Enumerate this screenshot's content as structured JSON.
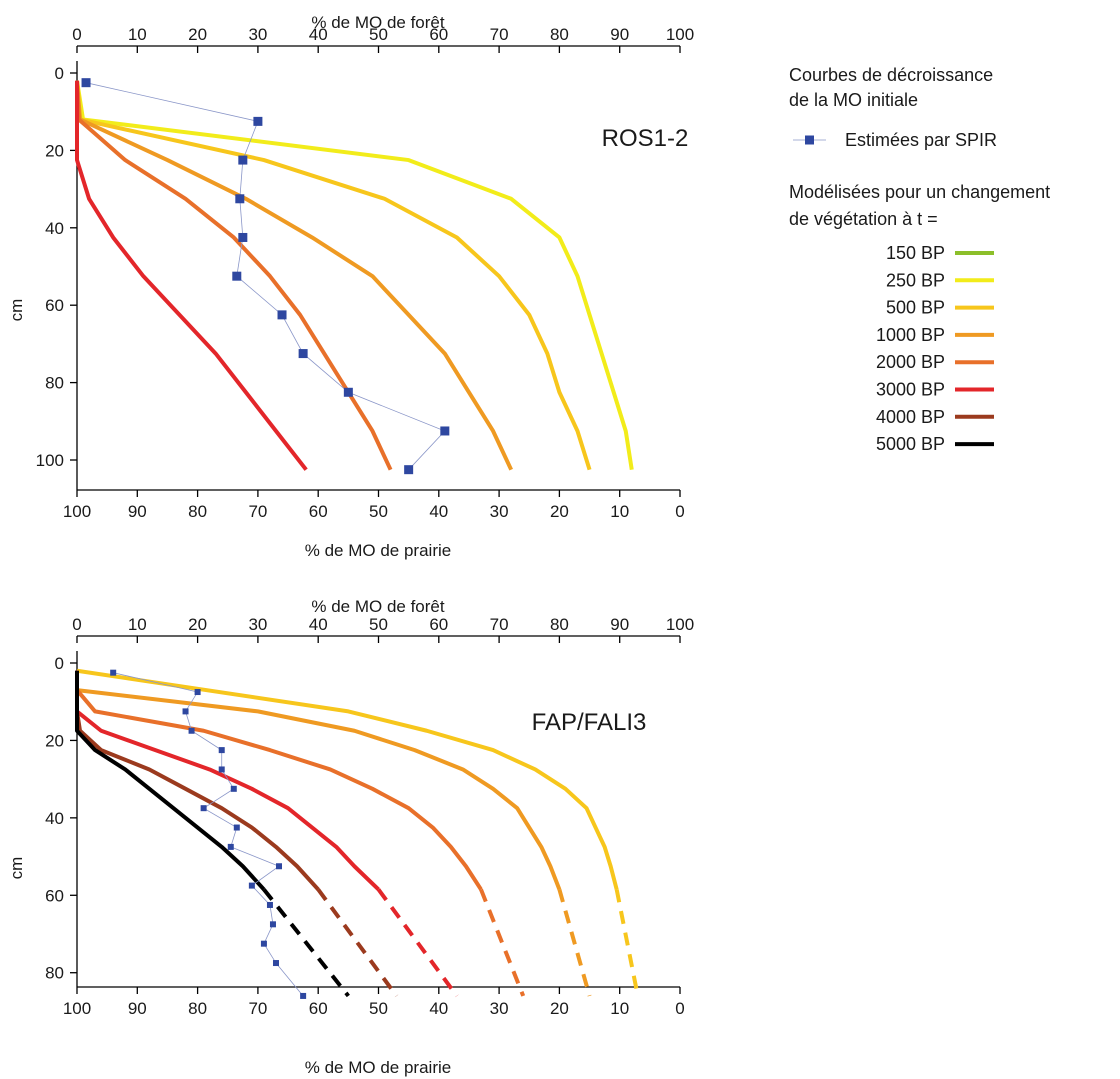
{
  "legend": {
    "title_line1": "Courbes de décroissance",
    "title_line2": "de la MO initiale",
    "estimated_label": "Estimées par SPIR",
    "model_title_line1": "Modélisées pour un changement",
    "model_title_line2": "de végétation à t =",
    "items": [
      {
        "label": "150 BP",
        "color": "#8cbf2a"
      },
      {
        "label": "250 BP",
        "color": "#f2ec1a"
      },
      {
        "label": "500 BP",
        "color": "#f7c61c"
      },
      {
        "label": "1000 BP",
        "color": "#ef9a22"
      },
      {
        "label": "2000 BP",
        "color": "#e8702a"
      },
      {
        "label": "3000 BP",
        "color": "#e3262a"
      },
      {
        "label": "4000 BP",
        "color": "#9b3a1e"
      },
      {
        "label": "5000 BP",
        "color": "#000000"
      }
    ],
    "spir_color": "#2e47a0"
  },
  "chart_data": [
    {
      "type": "line",
      "title": "ROS1-2",
      "x_top_label": "% de MO de forêt",
      "x_bottom_label": "% de MO de prairie",
      "ylabel": "cm",
      "x_top_ticks": [
        "0",
        "10",
        "20",
        "30",
        "40",
        "50",
        "60",
        "70",
        "80",
        "90",
        "100"
      ],
      "x_bottom_ticks": [
        "100",
        "90",
        "80",
        "70",
        "60",
        "50",
        "40",
        "30",
        "20",
        "10",
        "0"
      ],
      "y_ticks": [
        "0",
        "20",
        "40",
        "60",
        "80",
        "100"
      ],
      "xlim": [
        0,
        100
      ],
      "ylim": [
        0,
        105
      ],
      "spir": {
        "name": "Estimées par SPIR",
        "points": [
          [
            1.5,
            2.5
          ],
          [
            30,
            12.5
          ],
          [
            27.5,
            22.5
          ],
          [
            27,
            32.5
          ],
          [
            27.5,
            42.5
          ],
          [
            26.5,
            52.5
          ],
          [
            34,
            62.5
          ],
          [
            37.5,
            72.5
          ],
          [
            45,
            82.5
          ],
          [
            61,
            92.5
          ],
          [
            55,
            102.5
          ]
        ]
      },
      "series": [
        {
          "name": "250 BP",
          "color": "#f2ec1a",
          "points": [
            [
              0,
              2
            ],
            [
              1,
              12
            ],
            [
              55,
              22.5
            ],
            [
              72,
              32.5
            ],
            [
              80,
              42.5
            ],
            [
              83,
              52.5
            ],
            [
              85,
              62.5
            ],
            [
              87,
              72.5
            ],
            [
              89,
              82.5
            ],
            [
              91,
              92.5
            ],
            [
              92,
              102.5
            ]
          ]
        },
        {
          "name": "500 BP",
          "color": "#f7c61c",
          "points": [
            [
              0,
              2
            ],
            [
              0.5,
              12
            ],
            [
              31,
              22.5
            ],
            [
              51,
              32.5
            ],
            [
              63,
              42.5
            ],
            [
              70,
              52.5
            ],
            [
              75,
              62.5
            ],
            [
              78,
              72.5
            ],
            [
              80,
              82.5
            ],
            [
              83,
              92.5
            ],
            [
              85,
              102.5
            ]
          ]
        },
        {
          "name": "1000 BP",
          "color": "#ef9a22",
          "points": [
            [
              0,
              2
            ],
            [
              0.5,
              12
            ],
            [
              15,
              22.5
            ],
            [
              28,
              32.5
            ],
            [
              39,
              42.5
            ],
            [
              49,
              52.5
            ],
            [
              55,
              62.5
            ],
            [
              61,
              72.5
            ],
            [
              65,
              82.5
            ],
            [
              69,
              92.5
            ],
            [
              72,
              102.5
            ]
          ]
        },
        {
          "name": "2000 BP",
          "color": "#e8702a",
          "points": [
            [
              0,
              2
            ],
            [
              0.3,
              12
            ],
            [
              8,
              22.5
            ],
            [
              18,
              32.5
            ],
            [
              26,
              42.5
            ],
            [
              32,
              52.5
            ],
            [
              37,
              62.5
            ],
            [
              41,
              72.5
            ],
            [
              45,
              82.5
            ],
            [
              49,
              92.5
            ],
            [
              52,
              102.5
            ]
          ]
        },
        {
          "name": "3000 BP",
          "color": "#e3262a",
          "points": [
            [
              0,
              2
            ],
            [
              0,
              12
            ],
            [
              0,
              22.5
            ],
            [
              2,
              32.5
            ],
            [
              6,
              42.5
            ],
            [
              11,
              52.5
            ],
            [
              17,
              62.5
            ],
            [
              23,
              72.5
            ],
            [
              28,
              82.5
            ],
            [
              33,
              92.5
            ],
            [
              38,
              102.5
            ]
          ]
        }
      ]
    },
    {
      "type": "line",
      "title": "FAP/FALI3",
      "x_top_label": "% de MO de forêt",
      "x_bottom_label": "% de MO de prairie",
      "ylabel": "cm",
      "x_top_ticks": [
        "0",
        "10",
        "20",
        "30",
        "40",
        "50",
        "60",
        "70",
        "80",
        "90",
        "100"
      ],
      "x_bottom_ticks": [
        "100",
        "90",
        "80",
        "70",
        "60",
        "50",
        "40",
        "30",
        "20",
        "10",
        "0"
      ],
      "x_bottom_tick_positions": [
        0,
        10,
        20,
        30,
        40,
        50,
        60,
        70,
        80,
        90,
        100
      ],
      "y_ticks": [
        "0",
        "20",
        "40",
        "60",
        "80"
      ],
      "xlim": [
        0,
        100
      ],
      "ylim": [
        0,
        90
      ],
      "spir": {
        "name": "Estimées par SPIR",
        "points": [
          [
            6,
            2.5
          ],
          [
            20,
            7.5
          ],
          [
            18,
            12.5
          ],
          [
            19,
            17.5
          ],
          [
            24,
            22.5
          ],
          [
            24,
            27.5
          ],
          [
            26,
            32.5
          ],
          [
            21,
            37.5
          ],
          [
            26.5,
            42.5
          ],
          [
            25.5,
            47.5
          ],
          [
            33.5,
            52.5
          ],
          [
            29,
            57.5
          ],
          [
            32,
            62.5
          ],
          [
            32.5,
            67.5
          ],
          [
            31,
            72.5
          ],
          [
            33,
            77.5
          ],
          [
            37.5,
            86
          ]
        ]
      },
      "series": [
        {
          "name": "500 BP",
          "color": "#f7c61c",
          "dash_from": 58.5,
          "points": [
            [
              0,
              2
            ],
            [
              45,
              12.5
            ],
            [
              58,
              17.5
            ],
            [
              69,
              22.5
            ],
            [
              76,
              27.5
            ],
            [
              81,
              32.5
            ],
            [
              84.5,
              37.5
            ],
            [
              86,
              42.5
            ],
            [
              87.5,
              47.5
            ],
            [
              88.5,
              52.5
            ],
            [
              89.5,
              58.5
            ],
            [
              93,
              86
            ]
          ]
        },
        {
          "name": "1000 BP",
          "color": "#ef9a22",
          "dash_from": 58.5,
          "points": [
            [
              0,
              2
            ],
            [
              0,
              7
            ],
            [
              30,
              12.5
            ],
            [
              46,
              17.5
            ],
            [
              56,
              22.5
            ],
            [
              64,
              27.5
            ],
            [
              69,
              32.5
            ],
            [
              73,
              37.5
            ],
            [
              75,
              42.5
            ],
            [
              77,
              47.5
            ],
            [
              78.5,
              52.5
            ],
            [
              80,
              58.5
            ],
            [
              85,
              86
            ]
          ]
        },
        {
          "name": "2000 BP",
          "color": "#e8702a",
          "dash_from": 58.5,
          "points": [
            [
              0,
              2
            ],
            [
              0,
              7
            ],
            [
              3,
              12.5
            ],
            [
              21,
              17.5
            ],
            [
              32,
              22.5
            ],
            [
              42,
              27.5
            ],
            [
              49,
              32.5
            ],
            [
              55,
              37.5
            ],
            [
              59,
              42.5
            ],
            [
              62,
              47.5
            ],
            [
              64.5,
              52.5
            ],
            [
              67,
              58.5
            ],
            [
              74,
              86
            ]
          ]
        },
        {
          "name": "3000 BP",
          "color": "#e3262a",
          "dash_from": 58.5,
          "points": [
            [
              0,
              2
            ],
            [
              0,
              7
            ],
            [
              0,
              12.5
            ],
            [
              4,
              17.5
            ],
            [
              13,
              22.5
            ],
            [
              22,
              27.5
            ],
            [
              29,
              32.5
            ],
            [
              35,
              37.5
            ],
            [
              39,
              42.5
            ],
            [
              43,
              47.5
            ],
            [
              46,
              52.5
            ],
            [
              50,
              58.5
            ],
            [
              63,
              86
            ]
          ]
        },
        {
          "name": "4000 BP",
          "color": "#9b3a1e",
          "dash_from": 58.5,
          "points": [
            [
              0,
              2
            ],
            [
              0,
              7
            ],
            [
              0,
              12.5
            ],
            [
              0.5,
              17.5
            ],
            [
              4,
              22.5
            ],
            [
              12,
              27.5
            ],
            [
              18,
              32.5
            ],
            [
              24,
              37.5
            ],
            [
              29,
              42.5
            ],
            [
              33,
              47.5
            ],
            [
              36.5,
              52.5
            ],
            [
              40,
              58.5
            ],
            [
              53,
              86
            ]
          ]
        },
        {
          "name": "5000 BP",
          "color": "#000000",
          "dash_from": 58.5,
          "points": [
            [
              0,
              2
            ],
            [
              0,
              7
            ],
            [
              0,
              12.5
            ],
            [
              0,
              17.5
            ],
            [
              3,
              22.5
            ],
            [
              8,
              27.5
            ],
            [
              12,
              32.5
            ],
            [
              16,
              37.5
            ],
            [
              20,
              42.5
            ],
            [
              24,
              47.5
            ],
            [
              27.5,
              52.5
            ],
            [
              31,
              58.5
            ],
            [
              45,
              86
            ]
          ]
        }
      ]
    }
  ]
}
